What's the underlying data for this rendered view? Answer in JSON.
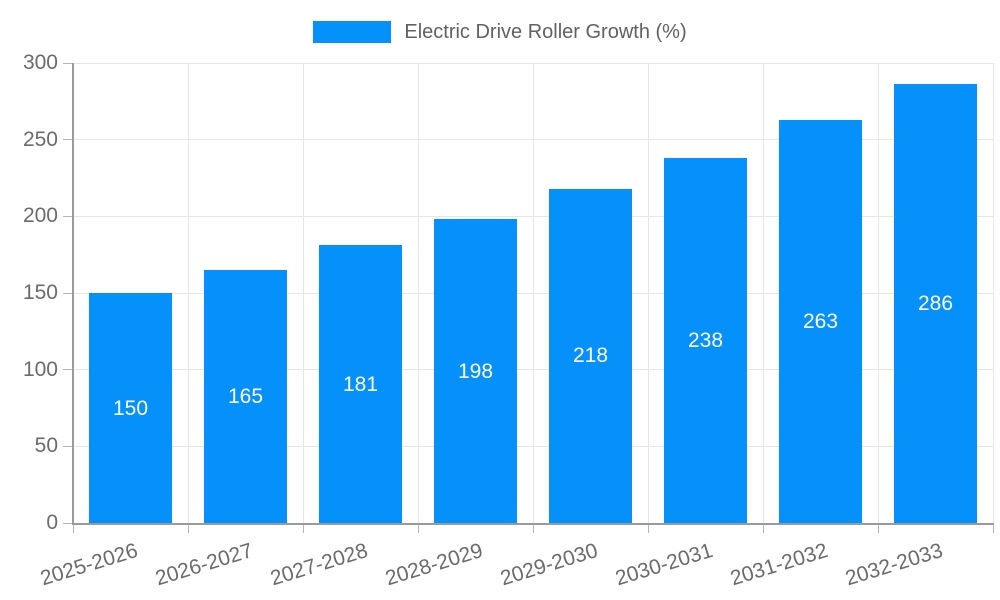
{
  "legend": {
    "label": "Electric Drive Roller Growth (%)"
  },
  "chart_data": {
    "type": "bar",
    "title": "",
    "xlabel": "",
    "ylabel": "",
    "series_name": "Electric Drive Roller Growth (%)",
    "categories": [
      "2025-2026",
      "2026-2027",
      "2027-2028",
      "2028-2029",
      "2029-2030",
      "2030-2031",
      "2031-2032",
      "2032-2033"
    ],
    "values": [
      150,
      165,
      181,
      198,
      218,
      238,
      263,
      286
    ],
    "ylim": [
      0,
      300
    ],
    "yticks": [
      0,
      50,
      100,
      150,
      200,
      250,
      300
    ],
    "grid": true,
    "legend_position": "top",
    "value_labels": "centered-inside-bars",
    "colors": {
      "bar": "#0691fa",
      "value_label": "#ffffff",
      "axis": "#9a9a9a",
      "gridline": "#e6e6e6",
      "tick_mark": "#b5b5b5",
      "tick_label": "#6b6b6b",
      "legend_text": "#616161"
    }
  }
}
